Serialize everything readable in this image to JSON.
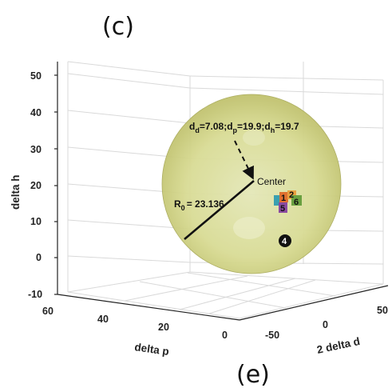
{
  "panel_top": "(c)",
  "panel_bottom": "(e)",
  "chart_data": {
    "type": "scatter",
    "projection": "3d",
    "title": "",
    "xlabel": "2 delta d",
    "ylabel": "delta p",
    "zlabel": "delta h",
    "x_ticks": [
      "-50",
      "0",
      "50"
    ],
    "y_ticks": [
      "60",
      "40",
      "20",
      "0"
    ],
    "z_ticks": [
      "50",
      "40",
      "30",
      "20",
      "10",
      "0",
      "-10"
    ],
    "zlim": [
      -10,
      55
    ],
    "grid": true,
    "sphere": {
      "center": {
        "d": 7.08,
        "p": 19.9,
        "h": 19.7
      },
      "radius": 23.136,
      "color": "#d8d88a"
    },
    "center_label": "Center",
    "center_annotation": {
      "d_label": "d",
      "d_sub": "d",
      "d_val": "=7.08;",
      "p_label": "d",
      "p_sub": "p",
      "p_val": "=19.9;",
      "h_label": "d",
      "h_sub": "h",
      "h_val": "=19.7"
    },
    "radius_annotation": {
      "prefix": "R",
      "sub": "0",
      "value": "= 23.136"
    },
    "points": [
      {
        "label": "1",
        "color": "#e07030"
      },
      {
        "label": "2",
        "color": "#e8a040"
      },
      {
        "label": "3",
        "color": "#3aa0b0"
      },
      {
        "label": "5",
        "color": "#8a4aa0"
      },
      {
        "label": "6",
        "color": "#6aa040"
      },
      {
        "label": "4",
        "color": "#111111"
      }
    ]
  }
}
